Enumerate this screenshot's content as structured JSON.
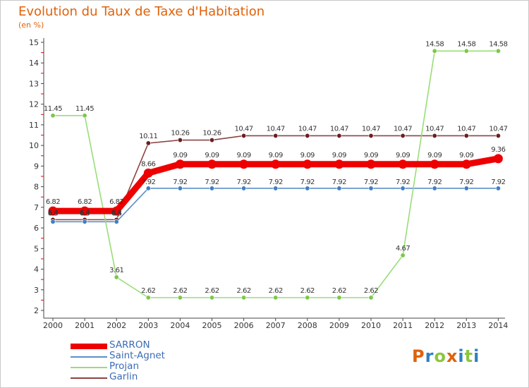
{
  "title": "Evolution du Taux de Taxe d'Habitation",
  "unit_label": "(en %)",
  "brand": {
    "text": "Proxiti",
    "letters": [
      {
        "ch": "P",
        "color": "#e0620b"
      },
      {
        "ch": "r",
        "color": "#2e7fc2"
      },
      {
        "ch": "o",
        "color": "#8cc63f"
      },
      {
        "ch": "x",
        "color": "#e0620b"
      },
      {
        "ch": "i",
        "color": "#2e7fc2"
      },
      {
        "ch": "t",
        "color": "#8cc63f"
      },
      {
        "ch": "i",
        "color": "#2e7fc2"
      }
    ]
  },
  "chart_data": {
    "type": "line",
    "title": "Evolution du Taux de Taxe d'Habitation",
    "ylabel": "(en %)",
    "xlabel": "",
    "categories": [
      "2000",
      "2001",
      "2002",
      "2003",
      "2004",
      "2005",
      "2006",
      "2007",
      "2008",
      "2009",
      "2010",
      "2011",
      "2012",
      "2013",
      "2014"
    ],
    "ylim": [
      2,
      15
    ],
    "yticks": [
      2,
      3,
      4,
      5,
      6,
      7,
      8,
      9,
      10,
      11,
      12,
      13,
      14,
      15
    ],
    "grid": false,
    "legend_position": "bottom-left",
    "series": [
      {
        "name": "SARRON",
        "color": "#ee0000",
        "style": "thick",
        "values": [
          6.82,
          6.82,
          6.82,
          8.66,
          9.09,
          9.09,
          9.09,
          9.09,
          9.09,
          9.09,
          9.09,
          9.09,
          9.09,
          9.09,
          9.36
        ],
        "labels": [
          "6.82",
          "6.82",
          "6.82",
          "8.66",
          "9.09",
          "9.09",
          "9.09",
          "9.09",
          "9.09",
          "9.09",
          "9.09",
          "9.09",
          "9.09",
          "9.09",
          "9.36"
        ]
      },
      {
        "name": "Saint-Agnet",
        "color": "#5b8fc7",
        "marker": "#3f7fc4",
        "style": "thin",
        "values": [
          6.3,
          6.3,
          6.3,
          7.92,
          7.92,
          7.92,
          7.92,
          7.92,
          7.92,
          7.92,
          7.92,
          7.92,
          7.92,
          7.92,
          7.92
        ],
        "labels": [
          "6.3",
          "6.3",
          "6.3",
          "7.92",
          "7.92",
          "7.92",
          "7.92",
          "7.92",
          "7.92",
          "7.92",
          "7.92",
          "7.92",
          "7.92",
          "7.92",
          "7.92"
        ]
      },
      {
        "name": "Projan",
        "color": "#99dd77",
        "marker": "#7cc84a",
        "style": "thin",
        "values": [
          11.45,
          11.45,
          3.61,
          2.62,
          2.62,
          2.62,
          2.62,
          2.62,
          2.62,
          2.62,
          2.62,
          4.67,
          14.58,
          14.58,
          14.58
        ],
        "labels": [
          "11.45",
          "11.45",
          "3.61",
          "2.62",
          "2.62",
          "2.62",
          "2.62",
          "2.62",
          "2.62",
          "2.62",
          "2.62",
          "4.67",
          "14.58",
          "14.58",
          "14.58"
        ]
      },
      {
        "name": "Garlin",
        "color": "#8b4444",
        "marker": "#6b1f1f",
        "style": "thin",
        "values": [
          6.4,
          6.4,
          6.4,
          10.11,
          10.26,
          10.26,
          10.47,
          10.47,
          10.47,
          10.47,
          10.47,
          10.47,
          10.47,
          10.47,
          10.47
        ],
        "labels": [
          "6.4",
          "6.4",
          "6.4",
          "10.11",
          "10.26",
          "10.26",
          "10.47",
          "10.47",
          "10.47",
          "10.47",
          "10.47",
          "10.47",
          "10.47",
          "10.47",
          "10.47"
        ]
      }
    ]
  },
  "legend": [
    {
      "label": "SARRON",
      "color": "#ee0000",
      "style": "thick"
    },
    {
      "label": "Saint-Agnet",
      "color": "#5b8fc7",
      "style": "thin"
    },
    {
      "label": "Projan",
      "color": "#99dd77",
      "style": "thin"
    },
    {
      "label": "Garlin",
      "color": "#8b4444",
      "style": "thin"
    }
  ]
}
